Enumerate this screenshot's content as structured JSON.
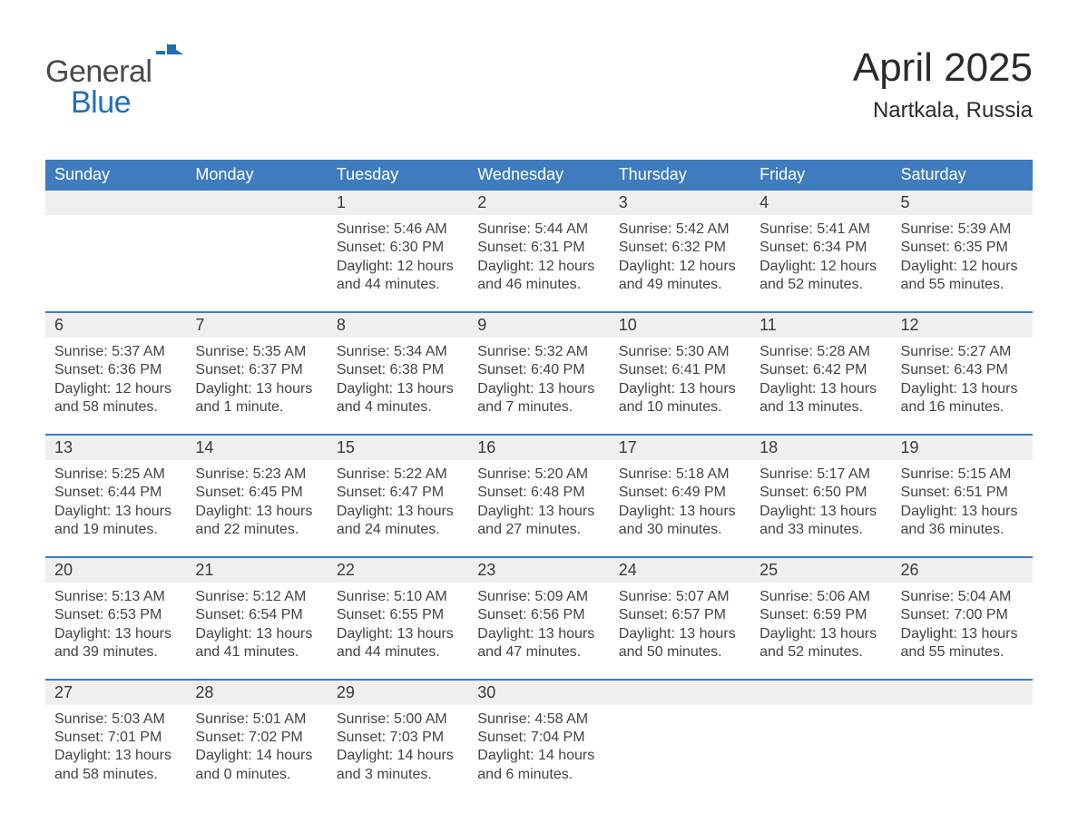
{
  "logo": {
    "word1": "General",
    "word2": "Blue"
  },
  "title": "April 2025",
  "location": "Nartkala, Russia",
  "colors": {
    "header_blue": "#3e7cbf",
    "accent_blue": "#1f6fb5",
    "day_header_bg": "#efefef",
    "text": "#333333"
  },
  "days_of_week": [
    "Sunday",
    "Monday",
    "Tuesday",
    "Wednesday",
    "Thursday",
    "Friday",
    "Saturday"
  ],
  "weeks": [
    [
      {
        "n": "",
        "sr": "",
        "ss": "",
        "dl": ""
      },
      {
        "n": "",
        "sr": "",
        "ss": "",
        "dl": ""
      },
      {
        "n": "1",
        "sr": "5:46 AM",
        "ss": "6:30 PM",
        "dl": "12 hours and 44 minutes."
      },
      {
        "n": "2",
        "sr": "5:44 AM",
        "ss": "6:31 PM",
        "dl": "12 hours and 46 minutes."
      },
      {
        "n": "3",
        "sr": "5:42 AM",
        "ss": "6:32 PM",
        "dl": "12 hours and 49 minutes."
      },
      {
        "n": "4",
        "sr": "5:41 AM",
        "ss": "6:34 PM",
        "dl": "12 hours and 52 minutes."
      },
      {
        "n": "5",
        "sr": "5:39 AM",
        "ss": "6:35 PM",
        "dl": "12 hours and 55 minutes."
      }
    ],
    [
      {
        "n": "6",
        "sr": "5:37 AM",
        "ss": "6:36 PM",
        "dl": "12 hours and 58 minutes."
      },
      {
        "n": "7",
        "sr": "5:35 AM",
        "ss": "6:37 PM",
        "dl": "13 hours and 1 minute."
      },
      {
        "n": "8",
        "sr": "5:34 AM",
        "ss": "6:38 PM",
        "dl": "13 hours and 4 minutes."
      },
      {
        "n": "9",
        "sr": "5:32 AM",
        "ss": "6:40 PM",
        "dl": "13 hours and 7 minutes."
      },
      {
        "n": "10",
        "sr": "5:30 AM",
        "ss": "6:41 PM",
        "dl": "13 hours and 10 minutes."
      },
      {
        "n": "11",
        "sr": "5:28 AM",
        "ss": "6:42 PM",
        "dl": "13 hours and 13 minutes."
      },
      {
        "n": "12",
        "sr": "5:27 AM",
        "ss": "6:43 PM",
        "dl": "13 hours and 16 minutes."
      }
    ],
    [
      {
        "n": "13",
        "sr": "5:25 AM",
        "ss": "6:44 PM",
        "dl": "13 hours and 19 minutes."
      },
      {
        "n": "14",
        "sr": "5:23 AM",
        "ss": "6:45 PM",
        "dl": "13 hours and 22 minutes."
      },
      {
        "n": "15",
        "sr": "5:22 AM",
        "ss": "6:47 PM",
        "dl": "13 hours and 24 minutes."
      },
      {
        "n": "16",
        "sr": "5:20 AM",
        "ss": "6:48 PM",
        "dl": "13 hours and 27 minutes."
      },
      {
        "n": "17",
        "sr": "5:18 AM",
        "ss": "6:49 PM",
        "dl": "13 hours and 30 minutes."
      },
      {
        "n": "18",
        "sr": "5:17 AM",
        "ss": "6:50 PM",
        "dl": "13 hours and 33 minutes."
      },
      {
        "n": "19",
        "sr": "5:15 AM",
        "ss": "6:51 PM",
        "dl": "13 hours and 36 minutes."
      }
    ],
    [
      {
        "n": "20",
        "sr": "5:13 AM",
        "ss": "6:53 PM",
        "dl": "13 hours and 39 minutes."
      },
      {
        "n": "21",
        "sr": "5:12 AM",
        "ss": "6:54 PM",
        "dl": "13 hours and 41 minutes."
      },
      {
        "n": "22",
        "sr": "5:10 AM",
        "ss": "6:55 PM",
        "dl": "13 hours and 44 minutes."
      },
      {
        "n": "23",
        "sr": "5:09 AM",
        "ss": "6:56 PM",
        "dl": "13 hours and 47 minutes."
      },
      {
        "n": "24",
        "sr": "5:07 AM",
        "ss": "6:57 PM",
        "dl": "13 hours and 50 minutes."
      },
      {
        "n": "25",
        "sr": "5:06 AM",
        "ss": "6:59 PM",
        "dl": "13 hours and 52 minutes."
      },
      {
        "n": "26",
        "sr": "5:04 AM",
        "ss": "7:00 PM",
        "dl": "13 hours and 55 minutes."
      }
    ],
    [
      {
        "n": "27",
        "sr": "5:03 AM",
        "ss": "7:01 PM",
        "dl": "13 hours and 58 minutes."
      },
      {
        "n": "28",
        "sr": "5:01 AM",
        "ss": "7:02 PM",
        "dl": "14 hours and 0 minutes."
      },
      {
        "n": "29",
        "sr": "5:00 AM",
        "ss": "7:03 PM",
        "dl": "14 hours and 3 minutes."
      },
      {
        "n": "30",
        "sr": "4:58 AM",
        "ss": "7:04 PM",
        "dl": "14 hours and 6 minutes."
      },
      {
        "n": "",
        "sr": "",
        "ss": "",
        "dl": ""
      },
      {
        "n": "",
        "sr": "",
        "ss": "",
        "dl": ""
      },
      {
        "n": "",
        "sr": "",
        "ss": "",
        "dl": ""
      }
    ]
  ],
  "labels": {
    "sunrise": "Sunrise: ",
    "sunset": "Sunset: ",
    "daylight": "Daylight: "
  }
}
